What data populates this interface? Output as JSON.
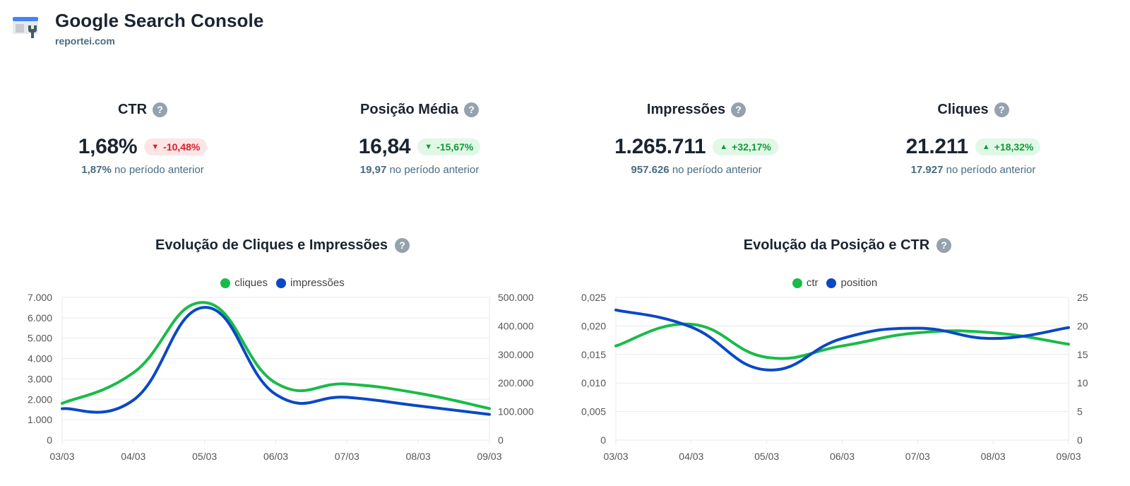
{
  "header": {
    "title": "Google Search Console",
    "subtitle": "reportei.com",
    "logo_icon": "search-console-logo-icon"
  },
  "kpis": [
    {
      "name": "CTR",
      "value": "1,68%",
      "change": "-10,48%",
      "direction": "down",
      "status": "bad",
      "prev_value": "1,87%",
      "prev_label": "no período anterior"
    },
    {
      "name": "Posição Média",
      "value": "16,84",
      "change": "-15,67%",
      "direction": "down",
      "status": "good",
      "prev_value": "19,97",
      "prev_label": "no período anterior"
    },
    {
      "name": "Impressões",
      "value": "1.265.711",
      "change": "+32,17%",
      "direction": "up",
      "status": "good",
      "prev_value": "957.626",
      "prev_label": "no período anterior"
    },
    {
      "name": "Cliques",
      "value": "21.211",
      "change": "+18,32%",
      "direction": "up",
      "status": "good",
      "prev_value": "17.927",
      "prev_label": "no período anterior"
    }
  ],
  "colors": {
    "green": "#19bb48",
    "blue": "#0a48c6",
    "badge_down_text": "#d61f2a",
    "badge_up_text": "#139a3a"
  },
  "chart_data": [
    {
      "type": "line",
      "title": "Evolução de Cliques e Impressões",
      "categories": [
        "03/03",
        "04/03",
        "05/03",
        "06/03",
        "07/03",
        "08/03",
        "09/03"
      ],
      "series": [
        {
          "name": "cliques",
          "axis": "left",
          "color": "#19bb48",
          "values": [
            1800,
            3300,
            6750,
            2800,
            2750,
            2300,
            1550
          ]
        },
        {
          "name": "impressões",
          "axis": "right",
          "color": "#0a48c6",
          "values": [
            110000,
            140000,
            465000,
            160000,
            150000,
            120000,
            90000
          ]
        }
      ],
      "y_left": {
        "range": [
          0,
          7000
        ],
        "ticks": [
          "0",
          "1.000",
          "2.000",
          "3.000",
          "4.000",
          "5.000",
          "6.000",
          "7.000"
        ]
      },
      "y_right": {
        "range": [
          0,
          500000
        ],
        "ticks": [
          "0",
          "100.000",
          "200.000",
          "300.000",
          "400.000",
          "500.000"
        ]
      },
      "legend_position": "top-center",
      "grid": true
    },
    {
      "type": "line",
      "title": "Evolução da Posição e CTR",
      "categories": [
        "03/03",
        "04/03",
        "05/03",
        "06/03",
        "07/03",
        "08/03",
        "09/03"
      ],
      "series": [
        {
          "name": "ctr",
          "axis": "left",
          "color": "#19bb48",
          "values": [
            0.0165,
            0.0203,
            0.0145,
            0.0165,
            0.0188,
            0.0188,
            0.0168
          ]
        },
        {
          "name": "position",
          "axis": "right",
          "color": "#0a48c6",
          "values": [
            22.8,
            19.8,
            12.3,
            17.8,
            19.6,
            17.8,
            19.7
          ]
        }
      ],
      "y_left": {
        "range": [
          0,
          0.025
        ],
        "ticks": [
          "0",
          "0,005",
          "0,010",
          "0,015",
          "0,020",
          "0,025"
        ]
      },
      "y_right": {
        "range": [
          0,
          25
        ],
        "ticks": [
          "0",
          "5",
          "10",
          "15",
          "20",
          "25"
        ]
      },
      "legend_position": "top-center",
      "grid": true
    }
  ]
}
